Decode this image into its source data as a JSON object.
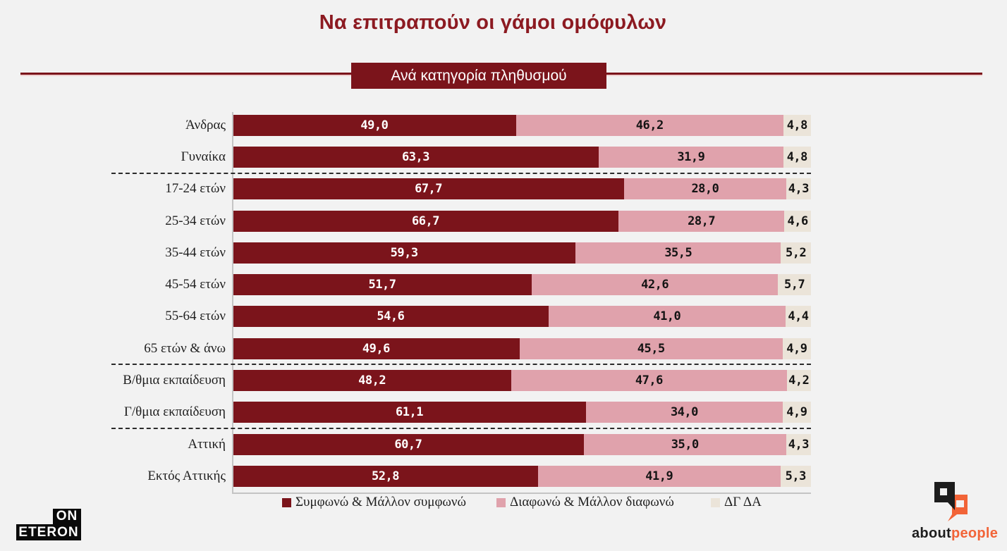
{
  "page": {
    "background": "#f2f2f2"
  },
  "header": {
    "title": "Να επιτραπούν οι γάμοι ομόφυλων",
    "title_color": "#8c1a21",
    "subtitle": "Ανά κατηγορία πληθυσμού",
    "subtitle_bg": "#7b141b",
    "divider_color": "#7b141b"
  },
  "chart_data": {
    "type": "bar",
    "orientation": "horizontal",
    "stacked": true,
    "unit": "percent",
    "xlim": [
      0,
      100
    ],
    "grid": false,
    "legend_position": "bottom",
    "categories": [
      "Άνδρας",
      "Γυναίκα",
      "17-24 ετών",
      "25-34 ετών",
      "35-44 ετών",
      "45-54 ετών",
      "55-64 ετών",
      "65 ετών & άνω",
      "Β/θμια εκπαίδευση",
      "Γ/θμια εκπαίδευση",
      "Αττική",
      "Εκτός Αττικής"
    ],
    "group_separators_after": [
      1,
      7,
      9
    ],
    "series": [
      {
        "name": "Συμφωνώ & Μάλλον συμφωνώ",
        "color": "#7b141b",
        "text_color": "#ffffff",
        "values": [
          49.0,
          63.3,
          67.7,
          66.7,
          59.3,
          51.7,
          54.6,
          49.6,
          48.2,
          61.1,
          60.7,
          52.8
        ],
        "labels": [
          "49,0",
          "63,3",
          "67,7",
          "66,7",
          "59,3",
          "51,7",
          "54,6",
          "49,6",
          "48,2",
          "61,1",
          "60,7",
          "52,8"
        ]
      },
      {
        "name": "Διαφωνώ & Μάλλον διαφωνώ",
        "color": "#e0a2ac",
        "text_color": "#141414",
        "values": [
          46.2,
          31.9,
          28.0,
          28.7,
          35.5,
          42.6,
          41.0,
          45.5,
          47.6,
          34.0,
          35.0,
          41.9
        ],
        "labels": [
          "46,2",
          "31,9",
          "28,0",
          "28,7",
          "35,5",
          "42,6",
          "41,0",
          "45,5",
          "47,6",
          "34,0",
          "35,0",
          "41,9"
        ]
      },
      {
        "name": "ΔΓ ΔΑ",
        "color": "#ebe4d9",
        "text_color": "#141414",
        "values": [
          4.8,
          4.8,
          4.3,
          4.6,
          5.2,
          5.7,
          4.4,
          4.9,
          4.2,
          4.9,
          4.3,
          5.3
        ],
        "labels": [
          "4,8",
          "4,8",
          "4,3",
          "4,6",
          "5,2",
          "5,7",
          "4,4",
          "4,9",
          "4,2",
          "4,9",
          "4,3",
          "5,3"
        ]
      }
    ]
  },
  "footer": {
    "eteron": {
      "line1": "ON",
      "line2": "ETERON"
    },
    "aboutpeople": {
      "part1": "about",
      "part2": "people",
      "orange": "#f26438",
      "black": "#1d1d1d"
    }
  }
}
